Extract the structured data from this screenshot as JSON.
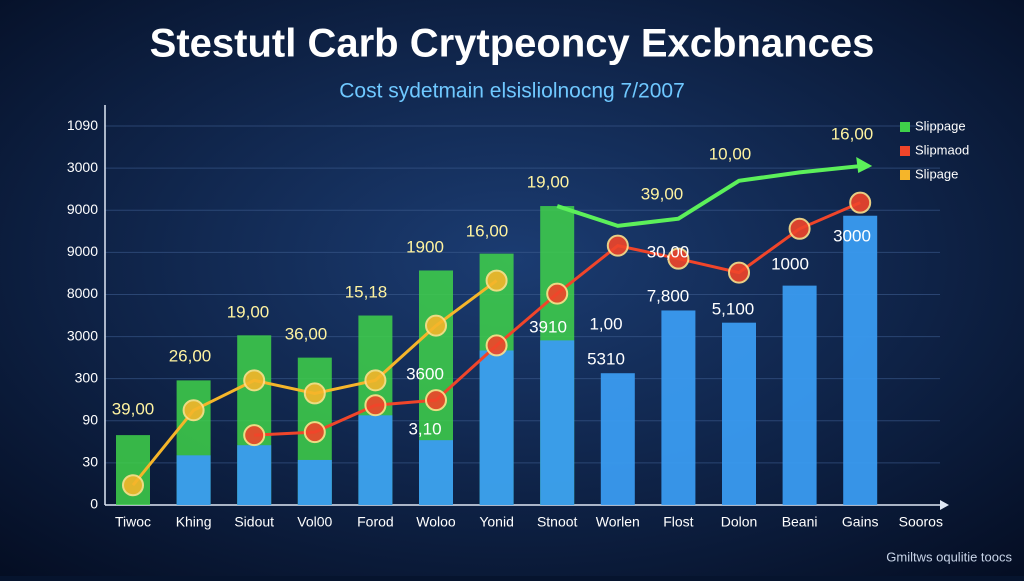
{
  "chart_data": {
    "type": "bar-line",
    "title": "Stestutl Carb Crytpeoncy Excbnances",
    "subtitle": "Cost sydetmain elsisliolnocng 7/2007",
    "categories": [
      "Tiwoc",
      "Khing",
      "Sidout",
      "Vol00",
      "Forod",
      "Woloo",
      "Yonid",
      "Stnoot",
      "Worlen",
      "Flost",
      "Dolon",
      "Beani",
      "Gains",
      "Sooros"
    ],
    "values": [
      null,
      118,
      142,
      107,
      213,
      154,
      367,
      391,
      313,
      462,
      433,
      521,
      687,
      null
    ],
    "color": "#3a9bf0",
    "series": [
      {
        "name": "Slippage",
        "color": "#3fd24a",
        "kind": "bar",
        "values": [
          166,
          296,
          403,
          350,
          450,
          557,
          597,
          710,
          null,
          null,
          null,
          null,
          null,
          null
        ]
      },
      {
        "name": "Slipmaod",
        "color": "#f0452a",
        "kind": "line",
        "values": [
          null,
          null,
          166,
          173,
          237,
          249,
          379,
          502,
          616,
          585,
          552,
          656,
          718,
          null
        ]
      },
      {
        "name": "Slipage",
        "color": "#f5b52a",
        "kind": "line",
        "values": [
          47,
          225,
          296,
          265,
          296,
          426,
          533,
          null,
          null,
          null,
          null,
          null,
          null,
          null
        ]
      }
    ],
    "trend": {
      "color": "#5cf05a",
      "values": [
        null,
        null,
        null,
        null,
        null,
        null,
        null,
        710,
        663,
        680,
        770,
        790,
        805,
        null
      ]
    },
    "ylim": [
      0,
      950
    ],
    "yticks": [
      0,
      {
        "value": 100,
        "label": "30"
      },
      {
        "value": 200,
        "label": "90"
      },
      {
        "value": 300,
        "label": "300"
      },
      {
        "value": 400,
        "label": "3000"
      },
      {
        "value": 500,
        "label": "8000"
      },
      {
        "value": 600,
        "label": "9000"
      },
      {
        "value": 700,
        "label": "9000"
      },
      {
        "value": 800,
        "label": "3000"
      },
      {
        "value": 900,
        "label": "1090"
      }
    ],
    "grid": true,
    "legend": "upper right",
    "annotations": [
      "39,00",
      "26,00",
      "19,00",
      "36,00",
      "15,18",
      "1900",
      "16,00",
      "19,00",
      "39,00",
      "10,00",
      "16,00",
      "3600",
      "3,10",
      "3910",
      "1,00",
      "5310",
      "7,800",
      "5,100",
      "1000",
      "3000",
      "30,00"
    ],
    "source": "Gmiltws oqulitie toocs"
  }
}
